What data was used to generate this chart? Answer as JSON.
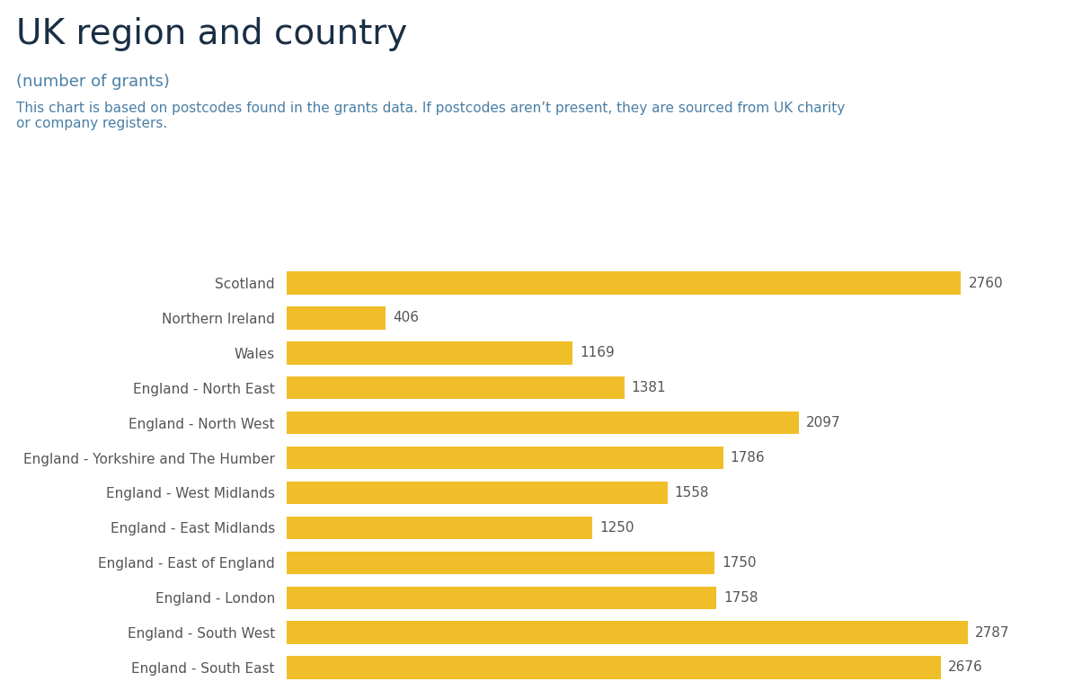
{
  "title": "UK region and country",
  "subtitle": "(number of grants)",
  "note": "This chart is based on postcodes found in the grants data. If postcodes aren’t present, they are sourced from UK charity\nor company registers.",
  "categories": [
    "Scotland",
    "Northern Ireland",
    "Wales",
    "England - North East",
    "England - North West",
    "England - Yorkshire and The Humber",
    "England - West Midlands",
    "England - East Midlands",
    "England - East of England",
    "England - London",
    "England - South West",
    "England - South East"
  ],
  "values": [
    2760,
    406,
    1169,
    1381,
    2097,
    1786,
    1558,
    1250,
    1750,
    1758,
    2787,
    2676
  ],
  "bar_color": "#F0BE28",
  "label_color": "#555555",
  "title_color": "#1a2e44",
  "subtitle_color": "#4a7fa5",
  "note_color": "#4a7fa5",
  "background_color": "#ffffff",
  "bar_height": 0.65,
  "xlim_max": 3100,
  "title_fontsize": 28,
  "subtitle_fontsize": 13,
  "note_fontsize": 11,
  "label_fontsize": 11,
  "ytick_fontsize": 11
}
